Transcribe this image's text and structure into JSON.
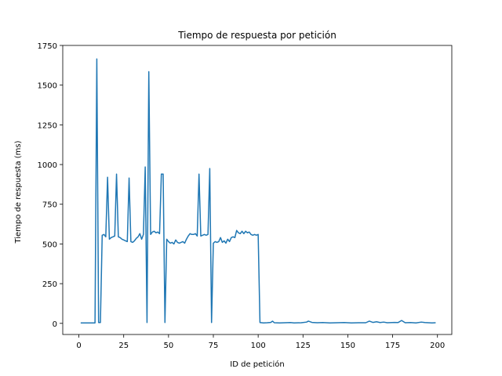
{
  "chart_data": {
    "type": "line",
    "title": "Tiempo de respuesta por petición",
    "xlabel": "ID de petición",
    "ylabel": "Tiempo de respuesta (ms)",
    "xlim": [
      -9,
      208
    ],
    "ylim": [
      -70,
      1750
    ],
    "xticks": [
      0,
      25,
      50,
      75,
      100,
      125,
      150,
      175,
      200
    ],
    "yticks": [
      0,
      250,
      500,
      750,
      1000,
      1250,
      1500,
      1750
    ],
    "grid": false,
    "line_color": "#1f77b4",
    "series": [
      {
        "points": [
          [
            1,
            3
          ],
          [
            3,
            3
          ],
          [
            5,
            3
          ],
          [
            7,
            3
          ],
          [
            9,
            3
          ],
          [
            10,
            1665
          ],
          [
            11,
            5
          ],
          [
            12,
            5
          ],
          [
            13,
            555
          ],
          [
            14,
            560
          ],
          [
            15,
            545
          ],
          [
            16,
            920
          ],
          [
            17,
            530
          ],
          [
            18,
            540
          ],
          [
            19,
            545
          ],
          [
            20,
            550
          ],
          [
            21,
            940
          ],
          [
            22,
            545
          ],
          [
            23,
            540
          ],
          [
            24,
            530
          ],
          [
            25,
            525
          ],
          [
            26,
            520
          ],
          [
            27,
            515
          ],
          [
            28,
            915
          ],
          [
            29,
            515
          ],
          [
            30,
            510
          ],
          [
            31,
            520
          ],
          [
            32,
            535
          ],
          [
            33,
            545
          ],
          [
            34,
            565
          ],
          [
            35,
            530
          ],
          [
            36,
            560
          ],
          [
            37,
            985
          ],
          [
            38,
            5
          ],
          [
            39,
            1585
          ],
          [
            40,
            560
          ],
          [
            41,
            575
          ],
          [
            42,
            580
          ],
          [
            43,
            570
          ],
          [
            44,
            575
          ],
          [
            45,
            565
          ],
          [
            46,
            940
          ],
          [
            47,
            940
          ],
          [
            48,
            5
          ],
          [
            49,
            530
          ],
          [
            50,
            515
          ],
          [
            51,
            505
          ],
          [
            52,
            510
          ],
          [
            53,
            500
          ],
          [
            54,
            525
          ],
          [
            55,
            510
          ],
          [
            56,
            505
          ],
          [
            57,
            510
          ],
          [
            58,
            515
          ],
          [
            59,
            505
          ],
          [
            60,
            530
          ],
          [
            61,
            550
          ],
          [
            62,
            565
          ],
          [
            63,
            560
          ],
          [
            64,
            560
          ],
          [
            65,
            565
          ],
          [
            66,
            550
          ],
          [
            67,
            940
          ],
          [
            68,
            550
          ],
          [
            69,
            555
          ],
          [
            70,
            560
          ],
          [
            71,
            555
          ],
          [
            72,
            560
          ],
          [
            73,
            975
          ],
          [
            74,
            5
          ],
          [
            75,
            505
          ],
          [
            76,
            515
          ],
          [
            77,
            510
          ],
          [
            78,
            515
          ],
          [
            79,
            540
          ],
          [
            80,
            510
          ],
          [
            81,
            520
          ],
          [
            82,
            505
          ],
          [
            83,
            530
          ],
          [
            84,
            515
          ],
          [
            85,
            540
          ],
          [
            86,
            545
          ],
          [
            87,
            540
          ],
          [
            88,
            585
          ],
          [
            89,
            570
          ],
          [
            90,
            565
          ],
          [
            91,
            580
          ],
          [
            92,
            565
          ],
          [
            93,
            580
          ],
          [
            94,
            570
          ],
          [
            95,
            575
          ],
          [
            96,
            560
          ],
          [
            97,
            555
          ],
          [
            98,
            560
          ],
          [
            99,
            555
          ],
          [
            100,
            560
          ],
          [
            101,
            5
          ],
          [
            103,
            3
          ],
          [
            105,
            4
          ],
          [
            107,
            6
          ],
          [
            108,
            14
          ],
          [
            109,
            4
          ],
          [
            112,
            3
          ],
          [
            115,
            4
          ],
          [
            118,
            5
          ],
          [
            120,
            3
          ],
          [
            124,
            4
          ],
          [
            127,
            8
          ],
          [
            128,
            14
          ],
          [
            130,
            6
          ],
          [
            133,
            4
          ],
          [
            136,
            5
          ],
          [
            140,
            3
          ],
          [
            144,
            4
          ],
          [
            148,
            5
          ],
          [
            152,
            3
          ],
          [
            156,
            4
          ],
          [
            160,
            4
          ],
          [
            162,
            14
          ],
          [
            164,
            6
          ],
          [
            166,
            10
          ],
          [
            168,
            5
          ],
          [
            170,
            8
          ],
          [
            172,
            4
          ],
          [
            176,
            6
          ],
          [
            178,
            5
          ],
          [
            180,
            18
          ],
          [
            182,
            4
          ],
          [
            185,
            5
          ],
          [
            188,
            3
          ],
          [
            191,
            8
          ],
          [
            193,
            5
          ],
          [
            195,
            4
          ],
          [
            197,
            3
          ],
          [
            199,
            4
          ]
        ]
      }
    ]
  }
}
